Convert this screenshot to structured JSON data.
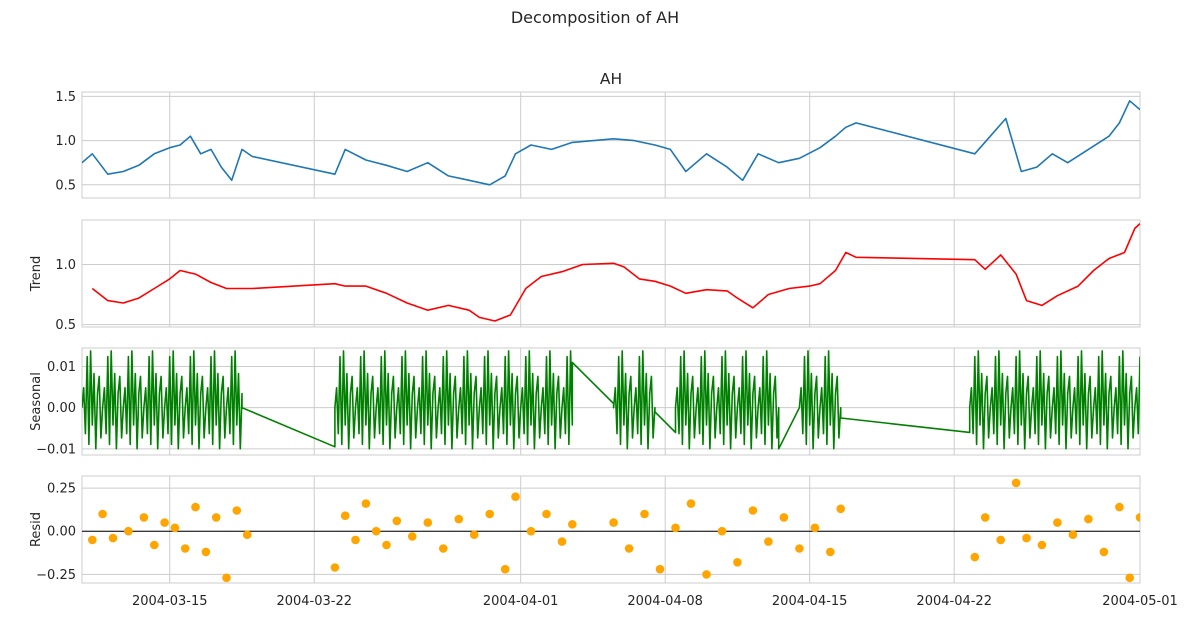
{
  "figure": {
    "title": "Decomposition of AH"
  },
  "chart_data": [
    {
      "type": "line",
      "title": "AH",
      "ylabel": "",
      "color": "#1f77b4",
      "xlim": [
        "2004-03-10T18:00",
        "2004-05-01T00:00"
      ],
      "ylim": [
        0.35,
        1.55
      ],
      "yticks": [
        0.5,
        1.0,
        1.5
      ],
      "ytick_labels": [
        "0.5",
        "1.0",
        "1.5"
      ],
      "series": [
        {
          "x": [
            "2004-03-10T18:00",
            "2004-03-11T06:00",
            "2004-03-12T00:00",
            "2004-03-12T18:00",
            "2004-03-13T12:00",
            "2004-03-14T06:00",
            "2004-03-15T00:00",
            "2004-03-15T12:00",
            "2004-03-16T00:00",
            "2004-03-16T12:00",
            "2004-03-17T00:00",
            "2004-03-17T12:00",
            "2004-03-18T00:00",
            "2004-03-18T12:00",
            "2004-03-19T00:00",
            "2004-03-23T00:00",
            "2004-03-23T12:00",
            "2004-03-24T12:00",
            "2004-03-25T12:00",
            "2004-03-26T12:00",
            "2004-03-27T12:00",
            "2004-03-28T12:00",
            "2004-03-29T12:00",
            "2004-03-30T12:00",
            "2004-03-31T06:00",
            "2004-03-31T18:00",
            "2004-04-01T12:00",
            "2004-04-02T12:00",
            "2004-04-03T12:00",
            "2004-04-05T12:00",
            "2004-04-06T12:00",
            "2004-04-07T12:00",
            "2004-04-08T06:00",
            "2004-04-09T00:00",
            "2004-04-10T00:00",
            "2004-04-11T00:00",
            "2004-04-11T18:00",
            "2004-04-12T12:00",
            "2004-04-13T12:00",
            "2004-04-14T12:00",
            "2004-04-15T12:00",
            "2004-04-16T06:00",
            "2004-04-16T18:00",
            "2004-04-17T06:00",
            "2004-04-23T00:00",
            "2004-04-23T18:00",
            "2004-04-24T12:00",
            "2004-04-25T06:00",
            "2004-04-26T00:00",
            "2004-04-26T18:00",
            "2004-04-27T12:00",
            "2004-04-28T12:00",
            "2004-04-29T12:00",
            "2004-04-30T00:00",
            "2004-04-30T12:00",
            "2004-05-01T00:00"
          ],
          "y": [
            0.75,
            0.85,
            0.62,
            0.65,
            0.72,
            0.85,
            0.92,
            0.95,
            1.05,
            0.85,
            0.9,
            0.7,
            0.55,
            0.9,
            0.82,
            0.62,
            0.9,
            0.78,
            0.72,
            0.65,
            0.75,
            0.6,
            0.55,
            0.5,
            0.6,
            0.85,
            0.95,
            0.9,
            0.98,
            1.02,
            1.0,
            0.95,
            0.9,
            0.65,
            0.85,
            0.7,
            0.55,
            0.85,
            0.75,
            0.8,
            0.92,
            1.05,
            1.15,
            1.2,
            0.85,
            1.05,
            1.25,
            0.65,
            0.7,
            0.85,
            0.75,
            0.9,
            1.05,
            1.2,
            1.45,
            1.35
          ]
        }
      ]
    },
    {
      "type": "line",
      "title": "",
      "ylabel": "Trend",
      "color": "#ff0000",
      "xlim": [
        "2004-03-10T18:00",
        "2004-05-01T00:00"
      ],
      "ylim": [
        0.48,
        1.37
      ],
      "yticks": [
        0.5,
        1.0
      ],
      "ytick_labels": [
        "0.5",
        "1.0"
      ],
      "series": [
        {
          "x": [
            "2004-03-11T06:00",
            "2004-03-12T00:00",
            "2004-03-12T18:00",
            "2004-03-13T12:00",
            "2004-03-14T06:00",
            "2004-03-15T00:00",
            "2004-03-15T12:00",
            "2004-03-16T06:00",
            "2004-03-17T00:00",
            "2004-03-17T18:00",
            "2004-03-18T12:00",
            "2004-03-19T00:00",
            "2004-03-23T00:00",
            "2004-03-23T12:00",
            "2004-03-24T12:00",
            "2004-03-25T12:00",
            "2004-03-26T12:00",
            "2004-03-27T12:00",
            "2004-03-28T12:00",
            "2004-03-29T12:00",
            "2004-03-30T00:00",
            "2004-03-30T18:00",
            "2004-03-31T12:00",
            "2004-04-01T06:00",
            "2004-04-02T00:00",
            "2004-04-03T00:00",
            "2004-04-04T00:00",
            "2004-04-05T12:00",
            "2004-04-06T00:00",
            "2004-04-06T18:00",
            "2004-04-07T12:00",
            "2004-04-08T06:00",
            "2004-04-09T00:00",
            "2004-04-10T00:00",
            "2004-04-11T00:00",
            "2004-04-11T12:00",
            "2004-04-12T06:00",
            "2004-04-13T00:00",
            "2004-04-14T00:00",
            "2004-04-15T00:00",
            "2004-04-15T12:00",
            "2004-04-16T06:00",
            "2004-04-16T18:00",
            "2004-04-17T06:00",
            "2004-04-23T00:00",
            "2004-04-23T12:00",
            "2004-04-24T06:00",
            "2004-04-25T00:00",
            "2004-04-25T12:00",
            "2004-04-26T06:00",
            "2004-04-27T00:00",
            "2004-04-28T00:00",
            "2004-04-28T18:00",
            "2004-04-29T12:00",
            "2004-04-30T06:00",
            "2004-04-30T18:00",
            "2004-05-01T00:00"
          ],
          "y": [
            0.8,
            0.7,
            0.68,
            0.72,
            0.8,
            0.88,
            0.95,
            0.92,
            0.85,
            0.8,
            0.8,
            0.8,
            0.84,
            0.82,
            0.82,
            0.76,
            0.68,
            0.62,
            0.66,
            0.62,
            0.56,
            0.53,
            0.58,
            0.8,
            0.9,
            0.94,
            1.0,
            1.01,
            0.98,
            0.88,
            0.86,
            0.82,
            0.76,
            0.79,
            0.78,
            0.72,
            0.64,
            0.75,
            0.8,
            0.82,
            0.84,
            0.95,
            1.1,
            1.06,
            1.04,
            0.96,
            1.08,
            0.92,
            0.7,
            0.66,
            0.74,
            0.82,
            0.95,
            1.05,
            1.1,
            1.3,
            1.34
          ]
        }
      ]
    },
    {
      "type": "line",
      "title": "",
      "ylabel": "Seasonal",
      "color": "#008000",
      "xlim": [
        "2004-03-10T18:00",
        "2004-05-01T00:00"
      ],
      "ylim": [
        -0.0115,
        0.0145
      ],
      "yticks": [
        -0.01,
        0.0,
        0.01
      ],
      "ytick_labels": [
        "−0.01",
        "0.00",
        "0.01"
      ],
      "series": [
        {
          "x": [
            "2004-03-18T12:00",
            "2004-03-23T00:00",
            "2004-04-03T12:00",
            "2004-04-05T12:00",
            "2004-04-07T12:00",
            "2004-04-08T12:00",
            "2004-04-13T12:00",
            "2004-04-14T12:00",
            "2004-04-16T12:00",
            "2004-04-22T18:00"
          ],
          "y": [
            0.0,
            -0.0095,
            0.011,
            0.001,
            -0.001,
            -0.006,
            -0.01,
            0.0,
            -0.0025,
            -0.006
          ]
        }
      ],
      "oscillation": {
        "period_hours": 24,
        "min": -0.0105,
        "max": 0.0138
      }
    },
    {
      "type": "scatter",
      "title": "",
      "ylabel": "Resid",
      "color": "#ffa500",
      "xlim": [
        "2004-03-10T18:00",
        "2004-05-01T00:00"
      ],
      "ylim": [
        -0.3,
        0.32
      ],
      "yticks": [
        -0.25,
        0.0,
        0.25
      ],
      "ytick_labels": [
        "−0.25",
        "0.00",
        "0.25"
      ],
      "zero_line": true,
      "series": [
        {
          "x": [
            "2004-03-11T06:00",
            "2004-03-11T18:00",
            "2004-03-12T06:00",
            "2004-03-13T00:00",
            "2004-03-13T18:00",
            "2004-03-14T06:00",
            "2004-03-14T18:00",
            "2004-03-15T06:00",
            "2004-03-15T18:00",
            "2004-03-16T06:00",
            "2004-03-16T18:00",
            "2004-03-17T06:00",
            "2004-03-17T18:00",
            "2004-03-18T06:00",
            "2004-03-18T18:00",
            "2004-03-23T00:00",
            "2004-03-23T12:00",
            "2004-03-24T00:00",
            "2004-03-24T12:00",
            "2004-03-25T00:00",
            "2004-03-25T12:00",
            "2004-03-26T00:00",
            "2004-03-26T18:00",
            "2004-03-27T12:00",
            "2004-03-28T06:00",
            "2004-03-29T00:00",
            "2004-03-29T18:00",
            "2004-03-30T12:00",
            "2004-03-31T06:00",
            "2004-03-31T18:00",
            "2004-04-01T12:00",
            "2004-04-02T06:00",
            "2004-04-03T00:00",
            "2004-04-03T12:00",
            "2004-04-05T12:00",
            "2004-04-06T06:00",
            "2004-04-07T00:00",
            "2004-04-07T18:00",
            "2004-04-08T12:00",
            "2004-04-09T06:00",
            "2004-04-10T00:00",
            "2004-04-10T18:00",
            "2004-04-11T12:00",
            "2004-04-12T06:00",
            "2004-04-13T00:00",
            "2004-04-13T18:00",
            "2004-04-14T12:00",
            "2004-04-15T06:00",
            "2004-04-16T00:00",
            "2004-04-16T12:00",
            "2004-04-23T00:00",
            "2004-04-23T12:00",
            "2004-04-24T06:00",
            "2004-04-25T00:00",
            "2004-04-25T12:00",
            "2004-04-26T06:00",
            "2004-04-27T00:00",
            "2004-04-27T18:00",
            "2004-04-28T12:00",
            "2004-04-29T06:00",
            "2004-04-30T00:00",
            "2004-04-30T12:00",
            "2004-05-01T00:00"
          ],
          "y": [
            -0.05,
            0.1,
            -0.04,
            0.0,
            0.08,
            -0.08,
            0.05,
            0.02,
            -0.1,
            0.14,
            -0.12,
            0.08,
            -0.27,
            0.12,
            -0.02,
            -0.21,
            0.09,
            -0.05,
            0.16,
            0.0,
            -0.08,
            0.06,
            -0.03,
            0.05,
            -0.1,
            0.07,
            -0.02,
            0.1,
            -0.22,
            0.2,
            0.0,
            0.1,
            -0.06,
            0.04,
            0.05,
            -0.1,
            0.1,
            -0.22,
            0.02,
            0.16,
            -0.25,
            0.0,
            -0.18,
            0.12,
            -0.06,
            0.08,
            -0.1,
            0.02,
            -0.12,
            0.13,
            -0.15,
            0.08,
            -0.05,
            0.28,
            -0.04,
            -0.08,
            0.05,
            -0.02,
            0.07,
            -0.12,
            0.14,
            -0.27,
            0.08
          ]
        }
      ]
    }
  ],
  "xaxis": {
    "ticks": [
      "2004-03-15",
      "2004-03-22",
      "2004-04-01",
      "2004-04-08",
      "2004-04-15",
      "2004-04-22",
      "2004-05-01"
    ],
    "tick_labels": [
      "2004-03-15",
      "2004-03-22",
      "2004-04-01",
      "2004-04-08",
      "2004-04-15",
      "2004-04-22",
      "2004-05-01"
    ]
  }
}
